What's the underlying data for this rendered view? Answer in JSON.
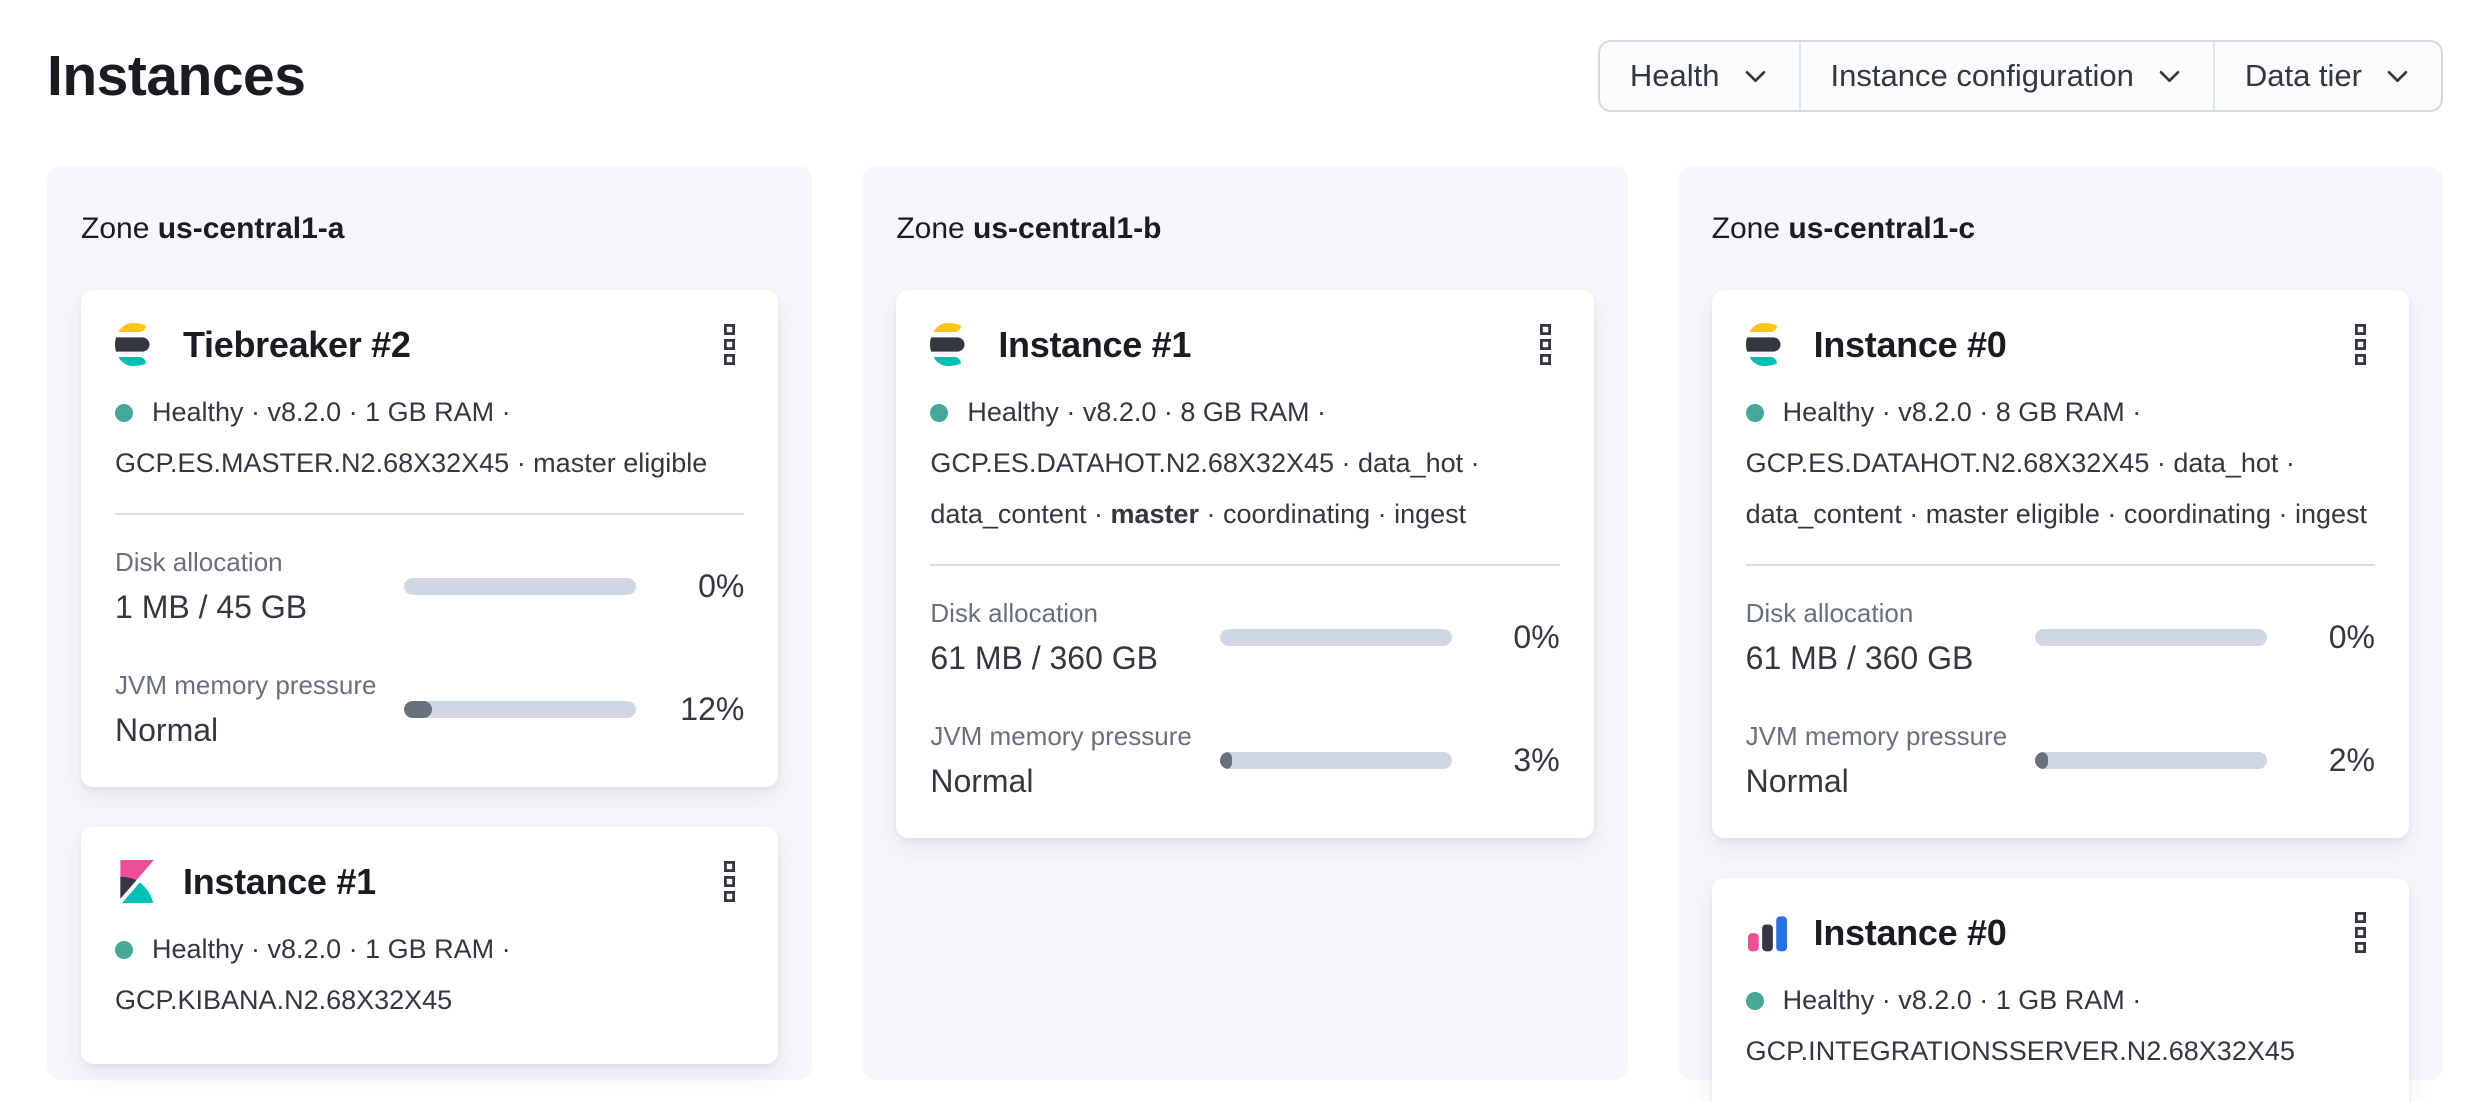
{
  "page": {
    "title": "Instances"
  },
  "filters": [
    {
      "label": "Health"
    },
    {
      "label": "Instance configuration"
    },
    {
      "label": "Data tier"
    }
  ],
  "zones": [
    {
      "zone_prefix": "Zone",
      "name": "us-central1-a",
      "cards": [
        {
          "icon": "elasticsearch",
          "title": "Tiebreaker #2",
          "health": "Healthy",
          "meta_lines": [
            "Healthy · v8.2.0 · 1 GB RAM ·",
            "GCP.ES.MASTER.N2.68X32X45 · master eligible"
          ],
          "metrics": [
            {
              "label": "Disk allocation",
              "value": "1 MB / 45 GB",
              "percent": 0,
              "percent_label": "0%"
            },
            {
              "label": "JVM memory pressure",
              "value": "Normal",
              "percent": 12,
              "percent_label": "12%"
            }
          ]
        },
        {
          "icon": "kibana",
          "title": "Instance #1",
          "health": "Healthy",
          "meta_lines": [
            "Healthy · v8.2.0 · 1 GB RAM ·",
            "GCP.KIBANA.N2.68X32X45"
          ],
          "metrics": []
        }
      ]
    },
    {
      "zone_prefix": "Zone",
      "name": "us-central1-b",
      "cards": [
        {
          "icon": "elasticsearch",
          "title": "Instance #1",
          "health": "Healthy",
          "meta_lines": [
            "Healthy · v8.2.0 · 8 GB RAM ·",
            "GCP.ES.DATAHOT.N2.68X32X45 · data_hot ·",
            "data_content · **master** · coordinating · ingest"
          ],
          "metrics": [
            {
              "label": "Disk allocation",
              "value": "61 MB / 360 GB",
              "percent": 0,
              "percent_label": "0%"
            },
            {
              "label": "JVM memory pressure",
              "value": "Normal",
              "percent": 3,
              "percent_label": "3%"
            }
          ]
        }
      ]
    },
    {
      "zone_prefix": "Zone",
      "name": "us-central1-c",
      "cards": [
        {
          "icon": "elasticsearch",
          "title": "Instance #0",
          "health": "Healthy",
          "meta_lines": [
            "Healthy · v8.2.0 · 8 GB RAM ·",
            "GCP.ES.DATAHOT.N2.68X32X45 · data_hot ·",
            "data_content · master eligible · coordinating · ingest"
          ],
          "metrics": [
            {
              "label": "Disk allocation",
              "value": "61 MB / 360 GB",
              "percent": 0,
              "percent_label": "0%"
            },
            {
              "label": "JVM memory pressure",
              "value": "Normal",
              "percent": 2,
              "percent_label": "2%"
            }
          ]
        },
        {
          "icon": "integrations-server",
          "title": "Instance #0",
          "health": "Healthy",
          "meta_lines": [
            "Healthy · v8.2.0 · 1 GB RAM ·",
            "GCP.INTEGRATIONSSERVER.N2.68X32X45"
          ],
          "metrics": []
        }
      ]
    }
  ],
  "icons": {
    "menu": "boxes-vertical-icon",
    "filter_caret": "chevron-down-icon",
    "health": "health-dot"
  },
  "colors": {
    "brand_yellow": "#FEC514",
    "brand_dark": "#343741",
    "brand_teal": "#00BFB3",
    "brand_pink": "#F04E98",
    "brand_blue": "#2670E8",
    "health_ok": "#45A898",
    "bar_track": "#D0D7E2",
    "bar_fill": "#69707D",
    "panel_bg": "#F5F7FA",
    "border": "#D3DAE6",
    "text": "#343741",
    "text_dark": "#1a1c21",
    "text_subdued": "#69707D"
  }
}
